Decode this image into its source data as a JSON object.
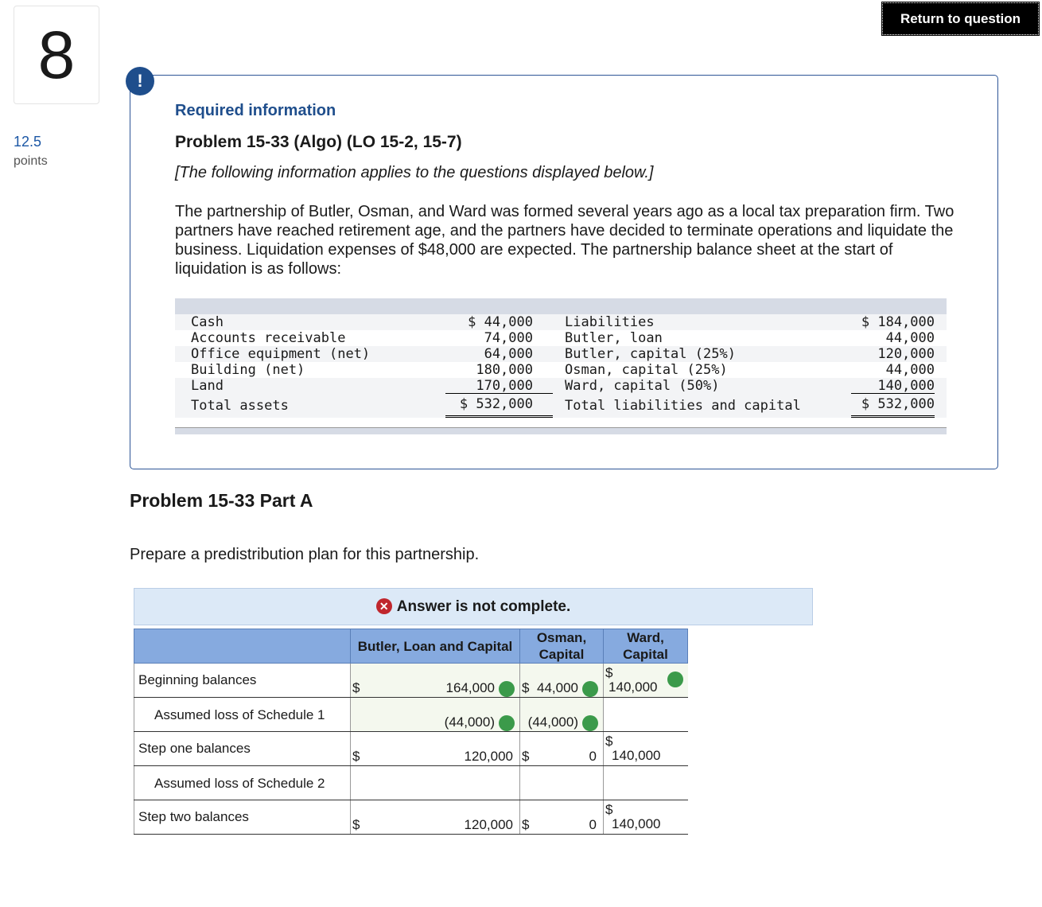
{
  "question": {
    "number": "8",
    "points_value": "12.5",
    "points_label": "points"
  },
  "return_button": "Return to question",
  "info": {
    "icon": "!",
    "heading": "Required information",
    "problem": "Problem 15-33 (Algo) (LO 15-2, 15-7)",
    "note": "[The following information applies to the questions displayed below.]",
    "paragraph": "The partnership of Butler, Osman, and Ward was formed several years ago as a local tax preparation firm. Two partners have reached retirement age, and the partners have decided to terminate operations and liquidate the business. Liquidation expenses of $48,000 are expected. The partnership balance sheet at the start of liquidation is as follows:",
    "balance_sheet": {
      "rows": [
        {
          "asset": "Cash",
          "asset_amount": "$ 44,000",
          "liability": "Liabilities",
          "liability_amount": "$ 184,000"
        },
        {
          "asset": "Accounts receivable",
          "asset_amount": "74,000",
          "liability": "Butler, loan",
          "liability_amount": "44,000"
        },
        {
          "asset": "Office equipment (net)",
          "asset_amount": "64,000",
          "liability": "Butler, capital (25%)",
          "liability_amount": "120,000"
        },
        {
          "asset": "Building (net)",
          "asset_amount": "180,000",
          "liability": "Osman, capital (25%)",
          "liability_amount": "44,000"
        },
        {
          "asset": "Land",
          "asset_amount": "170,000",
          "liability": "Ward, capital (50%)",
          "liability_amount": "140,000"
        }
      ],
      "total": {
        "asset": "Total assets",
        "asset_amount": "$ 532,000",
        "liability": "Total liabilities and capital",
        "liability_amount": "$ 532,000"
      }
    }
  },
  "part": {
    "title": "Problem 15-33 Part A",
    "instruction": "Prepare a predistribution plan for this partnership.",
    "status": "Answer is not complete.",
    "columns": [
      "Butler, Loan and Capital",
      "Osman, Capital",
      "Ward, Capital"
    ],
    "rows": [
      {
        "label": "Beginning balances",
        "cells": [
          {
            "currency": "$",
            "value": "164,000",
            "correct": true
          },
          {
            "currency": "$",
            "value": "44,000",
            "correct": true
          },
          {
            "currency": "$",
            "value": "140,000",
            "correct": true
          }
        ]
      },
      {
        "label": "Assumed loss of Schedule 1",
        "cells": [
          {
            "value": "(44,000)",
            "correct": true
          },
          {
            "value": "(44,000)",
            "correct": true
          },
          {}
        ]
      },
      {
        "label": "Step one balances",
        "cells": [
          {
            "currency": "$",
            "value": "120,000"
          },
          {
            "currency": "$",
            "value": "0"
          },
          {
            "currency": "$",
            "value": "140,000"
          }
        ]
      },
      {
        "label": "Assumed loss of Schedule 2",
        "cells": [
          {},
          {},
          {}
        ]
      },
      {
        "label": "Step two balances",
        "cells": [
          {
            "currency": "$",
            "value": "120,000"
          },
          {
            "currency": "$",
            "value": "0"
          },
          {
            "currency": "$",
            "value": "140,000"
          }
        ]
      }
    ]
  }
}
